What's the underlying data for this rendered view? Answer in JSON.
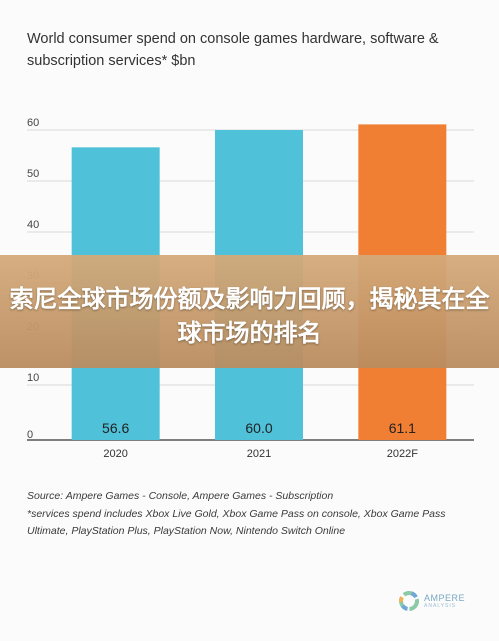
{
  "title": "World consumer spend on console games hardware, software & subscription services* $bn",
  "banner_text": "索尼全球市场份额及影响力回顾，揭秘其在全球市场的排名",
  "source_lines": [
    "Source: Ampere Games - Console, Ampere Games - Subscription",
    "*services spend includes Xbox Live Gold, Xbox Game Pass on console, Xbox Game Pass Ultimate, PlayStation Plus, PlayStation Now, Nintendo Switch Online"
  ],
  "logo": {
    "name": "AMPERE",
    "sub": "ANALYSIS"
  },
  "colors": {
    "bar_default": "#4FC1D8",
    "bar_forecast": "#F07F33",
    "grid": "#d9d9d9",
    "axis": "#333333"
  },
  "chart_data": {
    "type": "bar",
    "title": "World consumer spend on console games hardware, software & subscription services* $bn",
    "categories": [
      "2020",
      "2021",
      "2022F"
    ],
    "values": [
      56.6,
      60.0,
      61.1
    ],
    "value_labels": [
      "56.6",
      "60.0",
      "61.1"
    ],
    "bar_colors": [
      "#4FC1D8",
      "#4FC1D8",
      "#F07F33"
    ],
    "xlabel": "",
    "ylabel": "",
    "ylim": [
      0,
      60
    ],
    "yticks": [
      0,
      10,
      20,
      30,
      40,
      50,
      60
    ],
    "grid": true,
    "legend": "none"
  }
}
